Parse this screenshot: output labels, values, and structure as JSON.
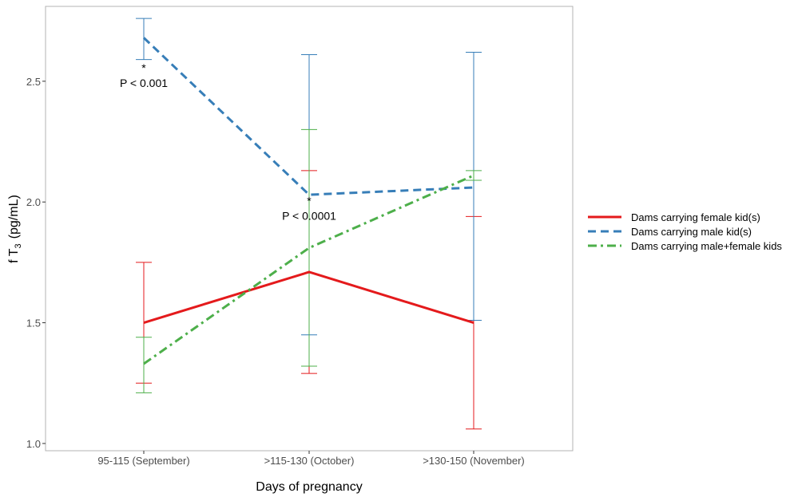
{
  "chart_data": {
    "type": "line",
    "title": "",
    "xlabel": "Days of pregnancy",
    "ylabel_main": "f T",
    "ylabel_sub": "3",
    "ylabel_unit": "(pg/mL)",
    "categories": [
      "95-115 (September)",
      ">115-130 (October)",
      ">130-150 (November)"
    ],
    "ylim": [
      0.97,
      2.81
    ],
    "yticks": [
      1.0,
      1.5,
      2.0,
      2.5
    ],
    "ytick_labels": [
      "1.0",
      "1.5",
      "2.0",
      "2.5"
    ],
    "grid": false,
    "legend_position": "right",
    "series": [
      {
        "name": "Dams carrying female kid(s)",
        "color": "#e41a1c",
        "line_style": "solid",
        "values": [
          1.5,
          1.71,
          1.5
        ],
        "err_low": [
          1.25,
          1.29,
          1.06
        ],
        "err_high": [
          1.75,
          2.13,
          1.94
        ]
      },
      {
        "name": "Dams carrying male kid(s)",
        "color": "#377eb8",
        "line_style": "dashed",
        "values": [
          2.68,
          2.03,
          2.06
        ],
        "err_low": [
          2.59,
          1.45,
          1.51
        ],
        "err_high": [
          2.76,
          2.61,
          2.62
        ]
      },
      {
        "name": "Dams carrying male+female kids",
        "color": "#4daf4a",
        "line_style": "dashdot",
        "values": [
          1.33,
          1.81,
          2.11
        ],
        "err_low": [
          1.21,
          1.32,
          2.09
        ],
        "err_high": [
          1.44,
          2.3,
          2.13
        ]
      }
    ],
    "annotations": [
      {
        "star": "*",
        "text": "P < 0.001",
        "category_index": 0,
        "y": 2.5
      },
      {
        "star": "*",
        "text": "P < 0.0001",
        "category_index": 1,
        "y": 1.95
      }
    ]
  }
}
